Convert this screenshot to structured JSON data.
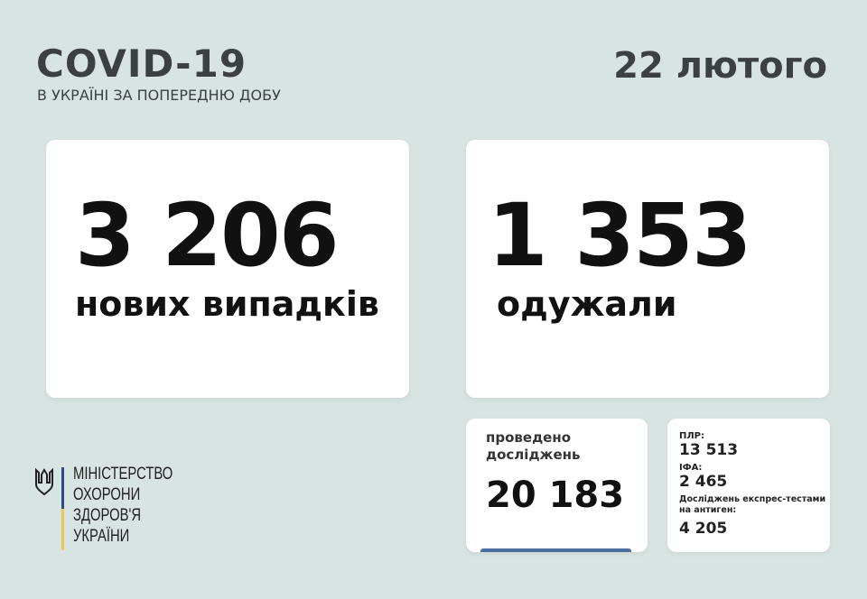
{
  "header": {
    "title": "COVID-19",
    "subtitle": "В УКРАЇНІ ЗА ПОПЕРЕДНЮ ДОБУ",
    "date": "22 лютого"
  },
  "new_cases": {
    "value": "3 206",
    "label": "нових випадків"
  },
  "recovered": {
    "value": "1 353",
    "label": "одужали"
  },
  "tests": {
    "label_line1": "проведено",
    "label_line2": "досліджень",
    "value": "20 183"
  },
  "breakdown": {
    "pcr_label": "ПЛР:",
    "pcr_value": "13 513",
    "ifa_label": "ІФА:",
    "ifa_value": "2 465",
    "antigen_label": "Досліджень експрес-тестами на антиген:",
    "antigen_value": "4 205"
  },
  "ministry": {
    "lines": [
      "МІНІСТЕРСТВО",
      "ОХОРОНИ",
      "ЗДОРОВ'Я",
      "УКРАЇНИ"
    ]
  },
  "colors": {
    "background": "#d8e4e1",
    "title": "#3b4042",
    "accent_blue": "#2a4a8c",
    "accent_yellow": "#e8c95c"
  }
}
